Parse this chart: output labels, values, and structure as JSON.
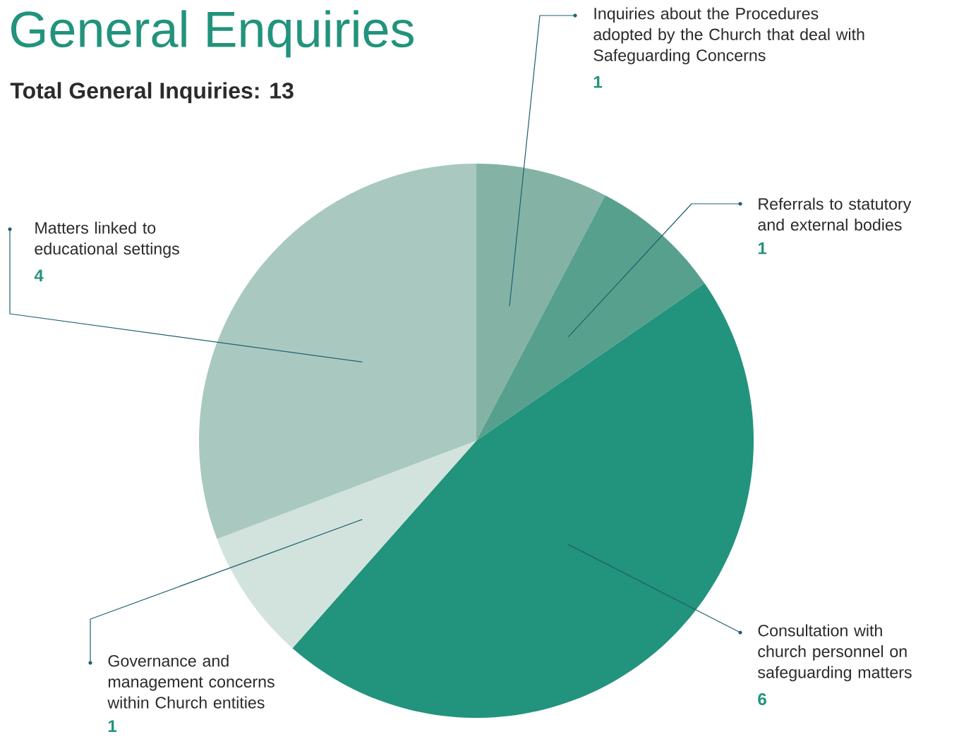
{
  "chart_data": {
    "type": "pie",
    "title": "General Enquiries",
    "subtitle": "Total General Inquiries: 13",
    "categories": [
      "Inquiries about the Procedures adopted by the Church that deal with Safeguarding Concerns",
      "Referrals to statutory and external bodies",
      "Consultation with church personnel on safeguarding matters",
      "Governance and management concerns within Church entities",
      "Matters linked to educational settings"
    ],
    "values": [
      1,
      1,
      6,
      1,
      4
    ],
    "colors": [
      "#84b3a5",
      "#58a08e",
      "#22937c",
      "#d2e3dd",
      "#a9c9c0"
    ],
    "data_labels": true
  }
}
